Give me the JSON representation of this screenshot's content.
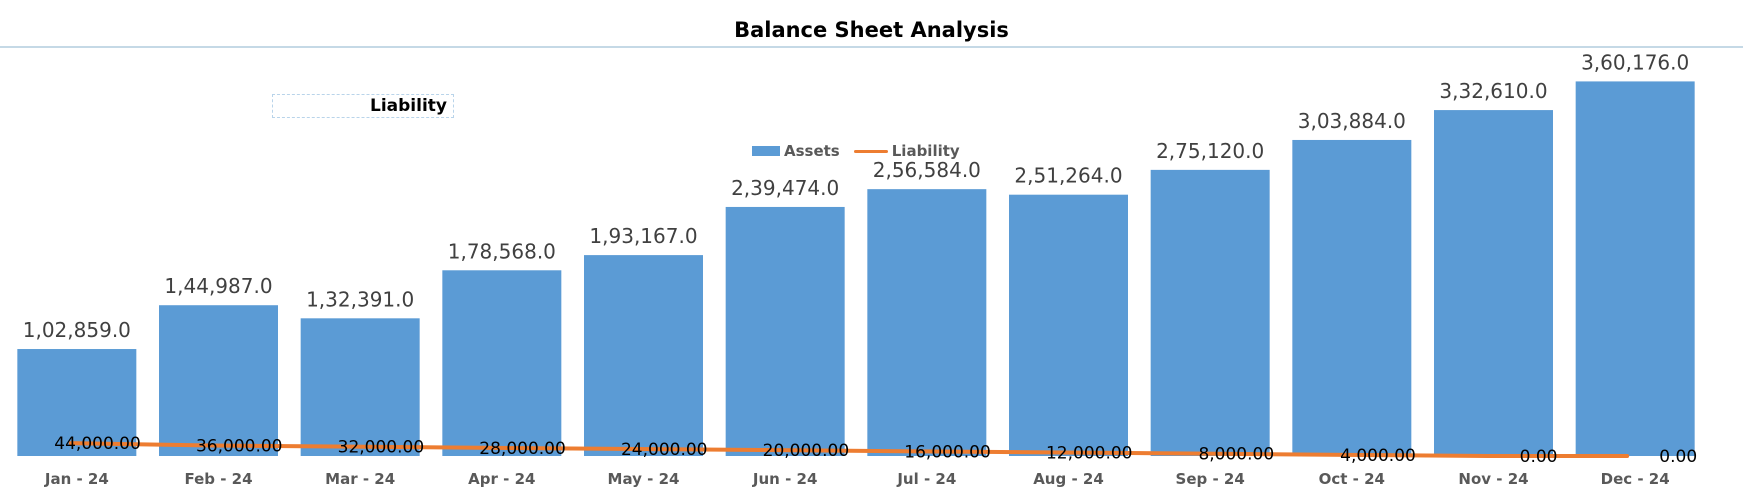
{
  "chart_data": {
    "type": "bar",
    "title": "Balance Sheet Analysis",
    "annotation": "Liability",
    "categories": [
      "Jan - 24",
      "Feb - 24",
      "Mar - 24",
      "Apr - 24",
      "May - 24",
      "Jun - 24",
      "Jul - 24",
      "Aug - 24",
      "Sep - 24",
      "Oct - 24",
      "Nov - 24",
      "Dec - 24"
    ],
    "series": [
      {
        "name": "Assets",
        "type": "bar",
        "color": "#5b9bd5",
        "values": [
          102859.0,
          144987.0,
          132391.0,
          178568.0,
          193167.0,
          239474.0,
          256584.0,
          251264.0,
          275120.0,
          303884.0,
          332610.0,
          360176.0
        ],
        "labels": [
          "1,02,859.0",
          "1,44,987.0",
          "1,32,391.0",
          "1,78,568.0",
          "1,93,167.0",
          "2,39,474.0",
          "2,56,584.0",
          "2,51,264.0",
          "2,75,120.0",
          "3,03,884.0",
          "3,32,610.0",
          "3,60,176.0"
        ]
      },
      {
        "name": "Liability",
        "type": "line",
        "color": "#ed7d31",
        "values": [
          44000,
          36000,
          32000,
          28000,
          24000,
          20000,
          16000,
          12000,
          8000,
          4000,
          0,
          0
        ],
        "labels": [
          "44,000.00",
          "36,000.00",
          "32,000.00",
          "28,000.00",
          "24,000.00",
          "20,000.00",
          "16,000.00",
          "12,000.00",
          "8,000.00",
          "4,000.00",
          "0.00",
          "0.00"
        ]
      }
    ],
    "xlabel": "",
    "ylabel": "",
    "ylim": [
      0,
      400000
    ],
    "grid": false,
    "legend_position": "top-center"
  }
}
